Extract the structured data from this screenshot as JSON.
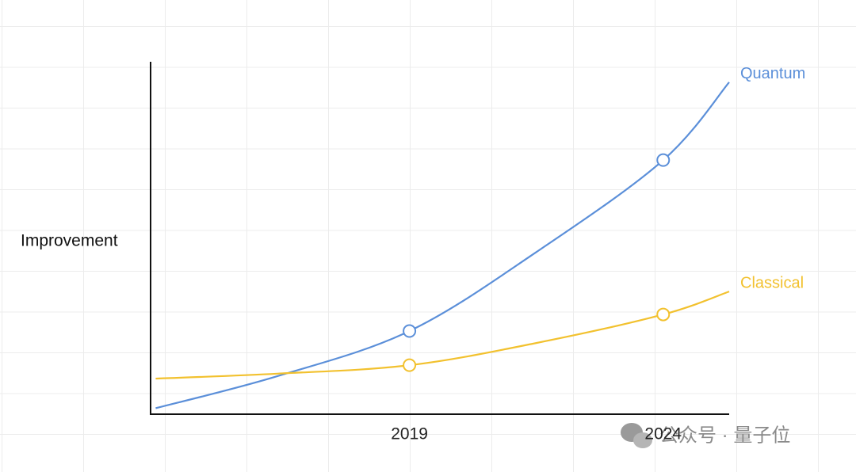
{
  "chart_data": {
    "type": "line",
    "y_label": "Improvement",
    "x": [
      2014,
      2016.4,
      2019,
      2021.5,
      2024,
      2025.3
    ],
    "xlim": [
      2013.9,
      2025.3
    ],
    "xticks": [
      2019,
      2024
    ],
    "ylim": [
      0,
      100
    ],
    "markers": [
      2019,
      2024
    ],
    "series": [
      {
        "name": "Quantum",
        "color": "#5b8fd9",
        "values": [
          1.7,
          10.8,
          23.6,
          46,
          72.1,
          94.2
        ]
      },
      {
        "name": "Classical",
        "color": "#f2c12e",
        "values": [
          10.1,
          11.5,
          13.9,
          20.2,
          28.3,
          34.8
        ]
      }
    ],
    "watermark": "公众号 · 量子位"
  }
}
